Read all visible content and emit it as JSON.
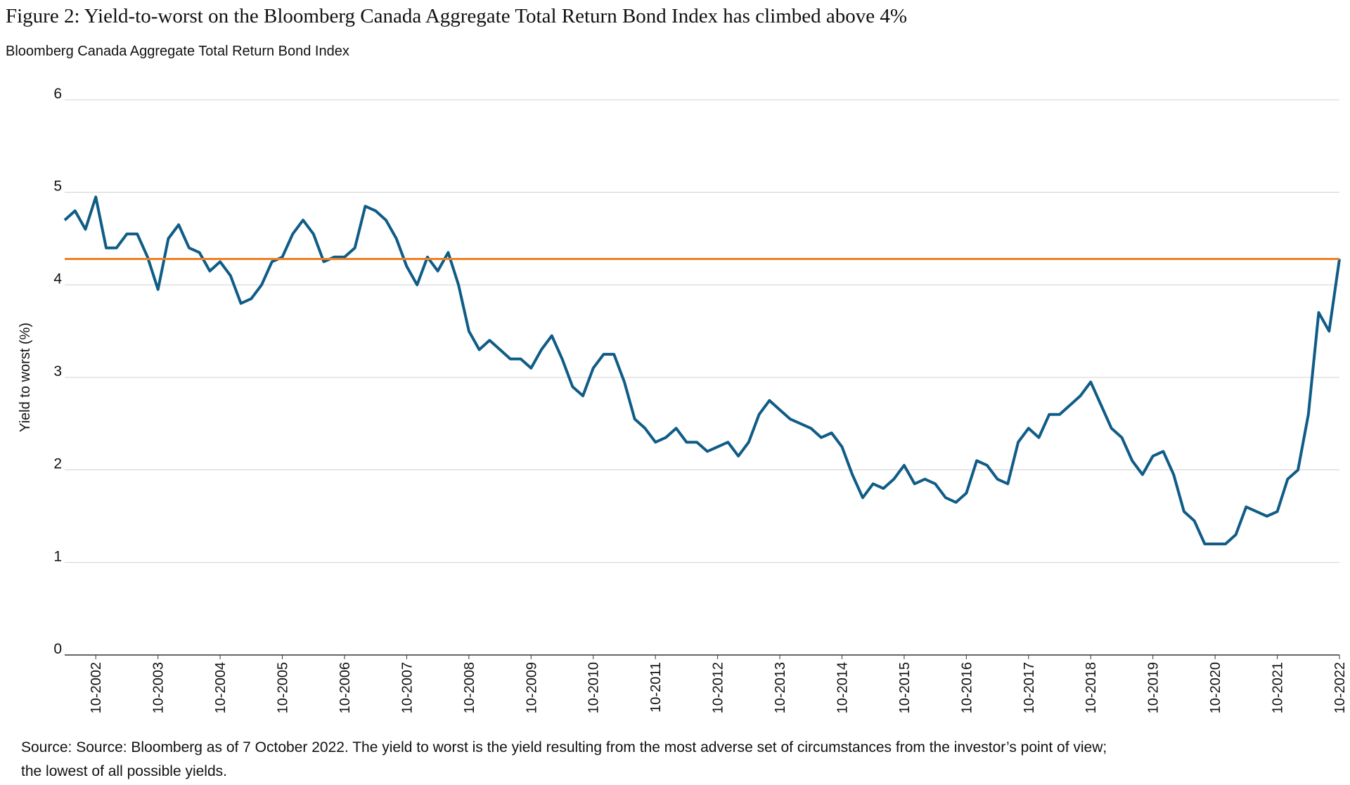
{
  "chart_data": {
    "type": "line",
    "title": "Figure 2:  Yield-to-worst on the Bloomberg Canada Aggregate Total Return Bond Index has climbed above 4%",
    "subtitle": "Bloomberg Canada Aggregate Total Return Bond Index",
    "y_label": "Yield to worst (%)",
    "source": "Source: Source: Bloomberg as of 7 October 2022. The yield to worst is the yield resulting from the most adverse set of circumstances from the investor’s point of view;",
    "source_line2": "the lowest of all possible yields.",
    "x": [
      "04-2002",
      "06-2002",
      "08-2002",
      "10-2002",
      "12-2002",
      "02-2003",
      "04-2003",
      "06-2003",
      "08-2003",
      "10-2003",
      "12-2003",
      "02-2004",
      "04-2004",
      "06-2004",
      "08-2004",
      "10-2004",
      "12-2004",
      "02-2005",
      "04-2005",
      "06-2005",
      "08-2005",
      "10-2005",
      "12-2005",
      "02-2006",
      "04-2006",
      "06-2006",
      "08-2006",
      "10-2006",
      "12-2006",
      "02-2007",
      "04-2007",
      "06-2007",
      "08-2007",
      "10-2007",
      "12-2007",
      "02-2008",
      "04-2008",
      "06-2008",
      "08-2008",
      "10-2008",
      "12-2008",
      "02-2009",
      "04-2009",
      "06-2009",
      "08-2009",
      "10-2009",
      "12-2009",
      "02-2010",
      "04-2010",
      "06-2010",
      "08-2010",
      "10-2010",
      "12-2010",
      "02-2011",
      "04-2011",
      "06-2011",
      "08-2011",
      "10-2011",
      "12-2011",
      "02-2012",
      "04-2012",
      "06-2012",
      "08-2012",
      "10-2012",
      "12-2012",
      "02-2013",
      "04-2013",
      "06-2013",
      "08-2013",
      "10-2013",
      "12-2013",
      "02-2014",
      "04-2014",
      "06-2014",
      "08-2014",
      "10-2014",
      "12-2014",
      "02-2015",
      "04-2015",
      "06-2015",
      "08-2015",
      "10-2015",
      "12-2015",
      "02-2016",
      "04-2016",
      "06-2016",
      "08-2016",
      "10-2016",
      "12-2016",
      "02-2017",
      "04-2017",
      "06-2017",
      "08-2017",
      "10-2017",
      "12-2017",
      "02-2018",
      "04-2018",
      "06-2018",
      "08-2018",
      "10-2018",
      "12-2018",
      "02-2019",
      "04-2019",
      "06-2019",
      "08-2019",
      "10-2019",
      "12-2019",
      "02-2020",
      "04-2020",
      "06-2020",
      "08-2020",
      "10-2020",
      "12-2020",
      "02-2021",
      "04-2021",
      "06-2021",
      "08-2021",
      "10-2021",
      "12-2021",
      "02-2022",
      "04-2022",
      "06-2022",
      "08-2022",
      "10-2022"
    ],
    "series": [
      {
        "name": "Yield to worst",
        "color": "#0f5c87",
        "values": [
          4.7,
          4.8,
          4.6,
          4.95,
          4.4,
          4.4,
          4.55,
          4.55,
          4.3,
          3.95,
          4.5,
          4.65,
          4.4,
          4.35,
          4.15,
          4.25,
          4.1,
          3.8,
          3.85,
          4.0,
          4.25,
          4.3,
          4.55,
          4.7,
          4.55,
          4.25,
          4.3,
          4.3,
          4.4,
          4.85,
          4.8,
          4.7,
          4.5,
          4.2,
          4.0,
          4.3,
          4.15,
          4.35,
          4.0,
          3.5,
          3.3,
          3.4,
          3.3,
          3.2,
          3.2,
          3.1,
          3.3,
          3.45,
          3.2,
          2.9,
          2.8,
          3.1,
          3.25,
          3.25,
          2.95,
          2.55,
          2.45,
          2.3,
          2.35,
          2.45,
          2.3,
          2.3,
          2.2,
          2.25,
          2.3,
          2.15,
          2.3,
          2.6,
          2.75,
          2.65,
          2.55,
          2.5,
          2.45,
          2.35,
          2.4,
          2.25,
          1.95,
          1.7,
          1.85,
          1.8,
          1.9,
          2.05,
          1.85,
          1.9,
          1.85,
          1.7,
          1.65,
          1.75,
          2.1,
          2.05,
          1.9,
          1.85,
          2.3,
          2.45,
          2.35,
          2.6,
          2.6,
          2.7,
          2.8,
          2.95,
          2.7,
          2.45,
          2.35,
          2.1,
          1.95,
          2.15,
          2.2,
          1.95,
          1.55,
          1.45,
          1.2,
          1.2,
          1.2,
          1.3,
          1.6,
          1.55,
          1.5,
          1.55,
          1.9,
          2.0,
          2.6,
          3.7,
          3.5,
          4.28
        ]
      }
    ],
    "reference_line": {
      "value": 4.28,
      "color": "#f07f22"
    },
    "xlim": [
      "04-2002",
      "10-2022"
    ],
    "xticks": [
      "10-2002",
      "10-2003",
      "10-2004",
      "10-2005",
      "10-2006",
      "10-2007",
      "10-2008",
      "10-2009",
      "10-2010",
      "10-2011",
      "10-2012",
      "10-2013",
      "10-2014",
      "10-2015",
      "10-2016",
      "10-2017",
      "10-2018",
      "10-2019",
      "10-2020",
      "10-2021",
      "10-2022"
    ],
    "ylim": [
      0,
      6
    ],
    "yticks": [
      0,
      1,
      2,
      3,
      4,
      5,
      6
    ],
    "grid": true
  }
}
